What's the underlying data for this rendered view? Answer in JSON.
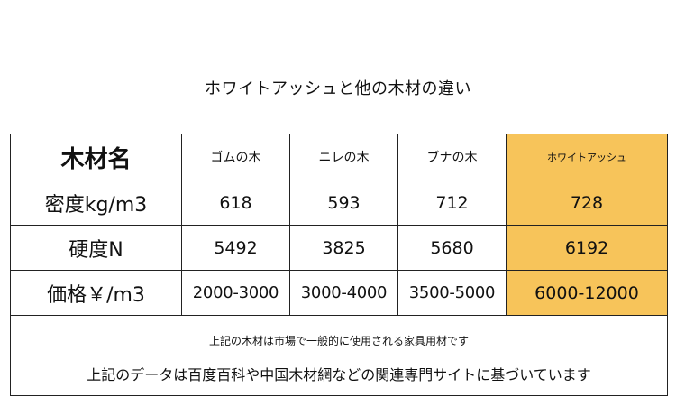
{
  "title": "ホワイトアッシュと他の木材の違い",
  "table": {
    "header_label": "木材名",
    "columns": [
      "ゴムの木",
      "ニレの木",
      "ブナの木",
      "ホワイトアッシュ"
    ],
    "rows": [
      {
        "label": "密度kg/m3",
        "values": [
          "618",
          "593",
          "712",
          "728"
        ]
      },
      {
        "label": "硬度N",
        "values": [
          "5492",
          "3825",
          "5680",
          "6192"
        ]
      },
      {
        "label": "価格￥/m3",
        "values": [
          "2000-3000",
          "3000-4000",
          "3500-5000",
          "6000-12000"
        ]
      }
    ],
    "highlight_color": "#f7c45a"
  },
  "notes": [
    "上記の木材は市場で一般的に使用される家具用材です",
    "上記のデータは百度百科や中国木材網などの関連専門サイトに基づいています"
  ]
}
